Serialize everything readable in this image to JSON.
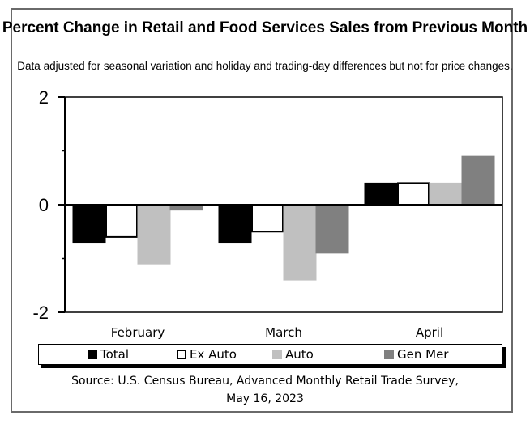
{
  "chart_data": {
    "type": "bar",
    "title": "Percent Change in Retail and Food Services Sales from Previous Month",
    "subtitle": "Data adjusted for seasonal variation and holiday and trading-day differences but not for price changes.",
    "xlabel": "",
    "ylabel": "",
    "ylim": [
      -2,
      2
    ],
    "yticks": [
      -2,
      0,
      2
    ],
    "ytick_labels": [
      "-2",
      "0",
      "2"
    ],
    "minor_yticks": [
      -1,
      1
    ],
    "grid": false,
    "categories": [
      "February",
      "March",
      "April"
    ],
    "series": [
      {
        "name": "Total",
        "color": "#000000",
        "outline": "#000000",
        "values": [
          -0.7,
          -0.7,
          0.4
        ]
      },
      {
        "name": "Ex Auto",
        "color": "#ffffff",
        "outline": "#000000",
        "values": [
          -0.6,
          -0.5,
          0.4
        ]
      },
      {
        "name": "Auto",
        "color": "#c0c0c0",
        "outline": "#c0c0c0",
        "values": [
          -1.1,
          -1.4,
          0.4
        ]
      },
      {
        "name": "Gen Mer",
        "color": "#808080",
        "outline": "#808080",
        "values": [
          -0.1,
          -0.9,
          0.9
        ]
      }
    ],
    "legend_position": "bottom",
    "source": "Source: U.S. Census Bureau, Advanced Monthly Retail Trade Survey,",
    "source_date": "May 16, 2023"
  }
}
